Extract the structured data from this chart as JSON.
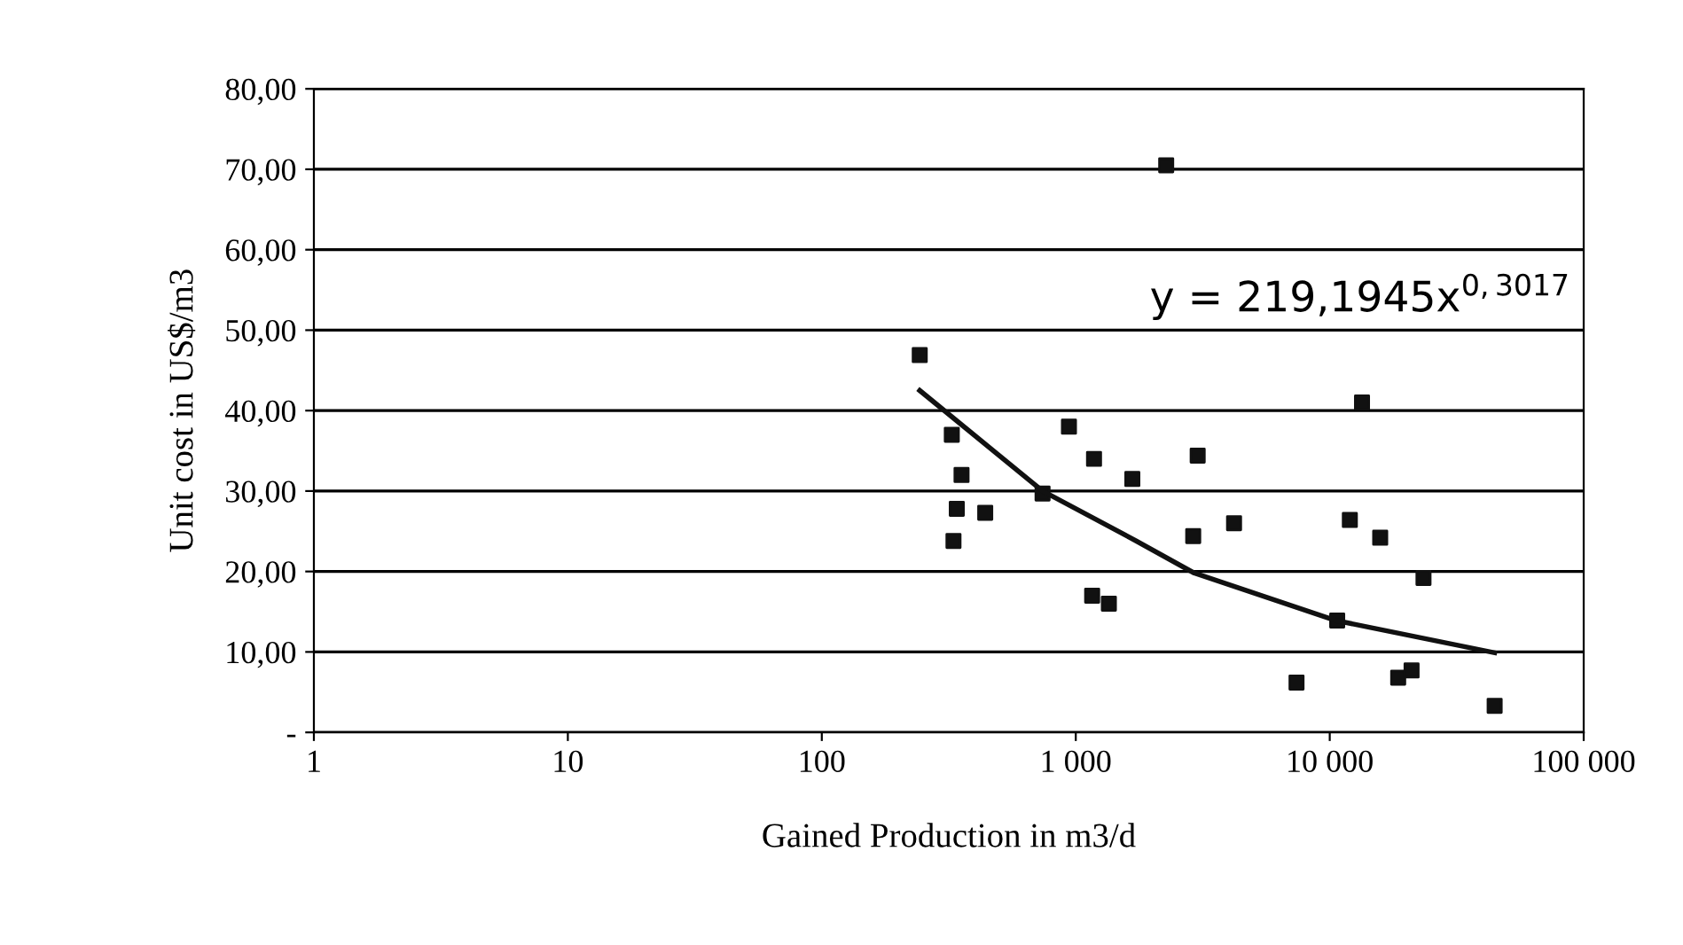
{
  "chart_data": {
    "type": "scatter",
    "xlabel": "Gained Production in m3/d",
    "ylabel": "Unit cost in US$/m3",
    "log": "x",
    "grid": "y",
    "xlim": [
      1,
      100000
    ],
    "ylim": [
      0,
      80
    ],
    "xticks": [
      1,
      10,
      100,
      {
        "value": 1000,
        "label": "1 000"
      },
      {
        "value": 10000,
        "label": "10 000"
      },
      {
        "value": 100000,
        "label": "100 000"
      }
    ],
    "yticks": [
      {
        "value": 0,
        "label": "-"
      },
      {
        "value": 10,
        "label": "10,00"
      },
      {
        "value": 20,
        "label": "20,00"
      },
      {
        "value": 30,
        "label": "30,00"
      },
      {
        "value": 40,
        "label": "40,00"
      },
      {
        "value": 50,
        "label": "50,00"
      },
      {
        "value": 60,
        "label": "60,00"
      },
      {
        "value": 70,
        "label": "70,00"
      },
      {
        "value": 80,
        "label": "80,00"
      }
    ],
    "annotations": [
      "y = 219,1945x$^{0,3017}$"
    ],
    "series": [
      {
        "marker": "square",
        "color": "#111111",
        "x": [
          243,
          325,
          355,
          340,
          330,
          440,
          740,
          940,
          1180,
          1160,
          1350,
          1670,
          2270,
          2900,
          3020,
          4200,
          7400,
          10700,
          12000,
          13400,
          15800,
          18600,
          21000,
          23400,
          44600
        ],
        "values": [
          46.9,
          37,
          32,
          27.8,
          23.8,
          27.3,
          29.7,
          38,
          34,
          17,
          16,
          31.5,
          70.5,
          24.4,
          34.4,
          26,
          6.2,
          13.9,
          26.4,
          41,
          24.2,
          6.8,
          7.7,
          19.2,
          3.3
        ]
      },
      {
        "type": "line",
        "marker": "none",
        "line_style": "solid",
        "color": "#111111",
        "x": [
          243,
          740,
          1730,
          2930,
          10600,
          44600
        ],
        "values": [
          42.5,
          30,
          23.8,
          19.8,
          13.9,
          9.9
        ]
      }
    ]
  }
}
